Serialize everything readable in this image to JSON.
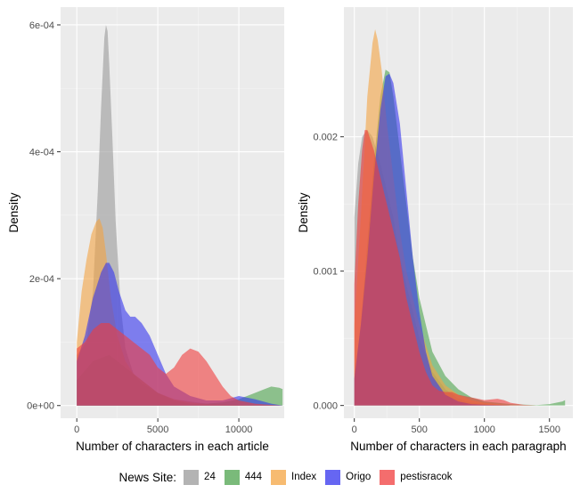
{
  "legend": {
    "title": "News Site:",
    "items": [
      {
        "label": "24",
        "color": "#999999"
      },
      {
        "label": "444",
        "color": "#4da34d"
      },
      {
        "label": "Index",
        "color": "#f4a442"
      },
      {
        "label": "Origo",
        "color": "#3333ee"
      },
      {
        "label": "pestisracok",
        "color": "#f03c3c"
      }
    ]
  },
  "chart_data": [
    {
      "type": "area",
      "title": "",
      "xlabel": "Number of characters in each article",
      "ylabel": "Density",
      "xlim": [
        -1000,
        12800
      ],
      "ylim": [
        -2e-05,
        0.000628
      ],
      "x_ticks": [
        0,
        5000,
        10000
      ],
      "x_tick_labels": [
        "0",
        "5000",
        "10000"
      ],
      "y_ticks": [
        0,
        0.0002,
        0.0004,
        0.0006
      ],
      "y_tick_labels": [
        "0e+00",
        "2e-04",
        "4e-04",
        "6e-04"
      ],
      "grid": true,
      "fill_opacity": 0.6,
      "series": [
        {
          "name": "24",
          "x": [
            0,
            600,
            1000,
            1300,
            1500,
            1700,
            1800,
            1900,
            2000,
            2200,
            2400,
            2700,
            3000,
            3500,
            4000,
            5000,
            6000,
            8000,
            10000,
            12700
          ],
          "y": [
            8e-05,
            0.0001,
            0.00018,
            0.00034,
            0.00047,
            0.00058,
            0.0006,
            0.00059,
            0.00054,
            0.00042,
            0.00029,
            0.00016,
            9e-05,
            5e-05,
            3.5e-05,
            2e-05,
            1e-05,
            3e-06,
            1e-06,
            0
          ]
        },
        {
          "name": "444",
          "x": [
            0,
            1000,
            2000,
            3000,
            4000,
            5000,
            6000,
            7000,
            8000,
            9000,
            10000,
            11000,
            11500,
            12000,
            12500,
            12700
          ],
          "y": [
            4e-05,
            7e-05,
            8e-05,
            6e-05,
            4e-05,
            2e-05,
            8e-06,
            3e-06,
            3e-06,
            5e-06,
            1e-05,
            2e-05,
            2.5e-05,
            3e-05,
            2.8e-05,
            2.6e-05
          ]
        },
        {
          "name": "Index",
          "x": [
            0,
            300,
            600,
            900,
            1200,
            1400,
            1600,
            1800,
            2100,
            2500,
            3000,
            3500,
            4000,
            5000,
            6000,
            7000,
            8000,
            10000,
            12700
          ],
          "y": [
            0.0001,
            0.00018,
            0.00023,
            0.00027,
            0.00029,
            0.000295,
            0.00028,
            0.00024,
            0.00017,
            0.00011,
            7e-05,
            5e-05,
            4e-05,
            2e-05,
            1e-05,
            5e-06,
            2e-06,
            1e-06,
            0
          ]
        },
        {
          "name": "Origo",
          "x": [
            0,
            500,
            1000,
            1500,
            1800,
            2000,
            2300,
            2600,
            3000,
            3300,
            3600,
            4000,
            4500,
            5000,
            5500,
            6000,
            7000,
            8000,
            9000,
            10000,
            11000,
            12000,
            12700
          ],
          "y": [
            7e-05,
            0.00011,
            0.00017,
            0.00021,
            0.000225,
            0.000225,
            0.00021,
            0.00018,
            0.00015,
            0.00014,
            0.00014,
            0.00013,
            0.00011,
            8e-05,
            5e-05,
            3e-05,
            1.5e-05,
            8e-06,
            8e-06,
            1.5e-05,
            1e-05,
            3e-06,
            0
          ]
        },
        {
          "name": "pestisracok",
          "x": [
            0,
            500,
            1000,
            1500,
            2000,
            2500,
            3000,
            3500,
            4000,
            4500,
            5000,
            5500,
            6000,
            6500,
            7000,
            7500,
            8000,
            8500,
            9000,
            9500,
            10000,
            11000,
            12000,
            12700
          ],
          "y": [
            9e-05,
            0.0001,
            0.00012,
            0.00013,
            0.00013,
            0.00012,
            0.00011,
            0.0001,
            9e-05,
            8e-05,
            6e-05,
            5e-05,
            6e-05,
            8e-05,
            9e-05,
            8.5e-05,
            7e-05,
            5e-05,
            3e-05,
            1.5e-05,
            8e-06,
            3e-06,
            1e-06,
            0
          ]
        }
      ]
    },
    {
      "type": "area",
      "title": "",
      "xlabel": "Number of characters in each paragraph",
      "ylabel": "Density",
      "xlim": [
        -80,
        1680
      ],
      "ylim": [
        -9.5e-05,
        0.002965
      ],
      "x_ticks": [
        0,
        500,
        1000,
        1500
      ],
      "x_tick_labels": [
        "0",
        "500",
        "1000",
        "1500"
      ],
      "y_ticks": [
        0,
        0.001,
        0.002
      ],
      "y_tick_labels": [
        "0.000",
        "0.001",
        "0.002"
      ],
      "grid": true,
      "fill_opacity": 0.6,
      "series": [
        {
          "name": "24",
          "x": [
            0,
            30,
            60,
            100,
            140,
            170,
            200,
            250,
            300,
            350,
            400,
            500,
            600,
            700,
            800,
            900,
            1000,
            1200
          ],
          "y": [
            0.0014,
            0.0018,
            0.002,
            0.00205,
            0.002,
            0.0019,
            0.0018,
            0.0016,
            0.0014,
            0.0011,
            0.0009,
            0.0005,
            0.00025,
            0.00012,
            5e-05,
            2e-05,
            1e-05,
            0
          ]
        },
        {
          "name": "444",
          "x": [
            0,
            50,
            100,
            150,
            200,
            240,
            270,
            300,
            350,
            400,
            450,
            500,
            550,
            600,
            700,
            800,
            900,
            1000,
            1200,
            1400,
            1500,
            1600,
            1620
          ],
          "y": [
            0.0002,
            0.0006,
            0.0012,
            0.0018,
            0.0023,
            0.0025,
            0.00248,
            0.0023,
            0.0019,
            0.0015,
            0.0011,
            0.0008,
            0.0006,
            0.0004,
            0.00022,
            0.00012,
            6e-05,
            3e-05,
            1e-05,
            3e-06,
            1e-05,
            3e-05,
            4e-05
          ]
        },
        {
          "name": "Index",
          "x": [
            0,
            50,
            100,
            140,
            160,
            180,
            210,
            250,
            300,
            350,
            400,
            450,
            500,
            600,
            700,
            800,
            900,
            1000,
            1100,
            1200
          ],
          "y": [
            0.0006,
            0.0014,
            0.0023,
            0.0027,
            0.0028,
            0.00272,
            0.0025,
            0.0021,
            0.0017,
            0.0013,
            0.001,
            0.0008,
            0.0006,
            0.0003,
            0.00015,
            8e-05,
            4e-05,
            2e-05,
            1e-05,
            0
          ]
        },
        {
          "name": "Origo",
          "x": [
            0,
            50,
            100,
            150,
            200,
            240,
            270,
            300,
            350,
            400,
            450,
            500,
            550,
            600,
            700,
            800,
            900,
            1000,
            1200
          ],
          "y": [
            0.0002,
            0.0006,
            0.0011,
            0.0017,
            0.0022,
            0.00245,
            0.00247,
            0.0024,
            0.0021,
            0.0016,
            0.0011,
            0.0007,
            0.0004,
            0.00022,
            8e-05,
            3e-05,
            1e-05,
            5e-06,
            0
          ]
        },
        {
          "name": "pestisracok",
          "x": [
            0,
            30,
            60,
            80,
            100,
            150,
            200,
            250,
            300,
            350,
            400,
            450,
            500,
            550,
            600,
            650,
            700,
            750,
            800,
            900,
            1000,
            1100,
            1150,
            1200,
            1300,
            1400
          ],
          "y": [
            0.0009,
            0.0015,
            0.0019,
            0.00205,
            0.00205,
            0.0019,
            0.0017,
            0.0015,
            0.0013,
            0.0011,
            0.0008,
            0.0006,
            0.0004,
            0.00025,
            0.00015,
            0.00011,
            0.0001,
            0.0001,
            8e-05,
            6e-05,
            4e-05,
            5e-05,
            4e-05,
            2e-05,
            5e-06,
            0
          ]
        }
      ]
    }
  ]
}
